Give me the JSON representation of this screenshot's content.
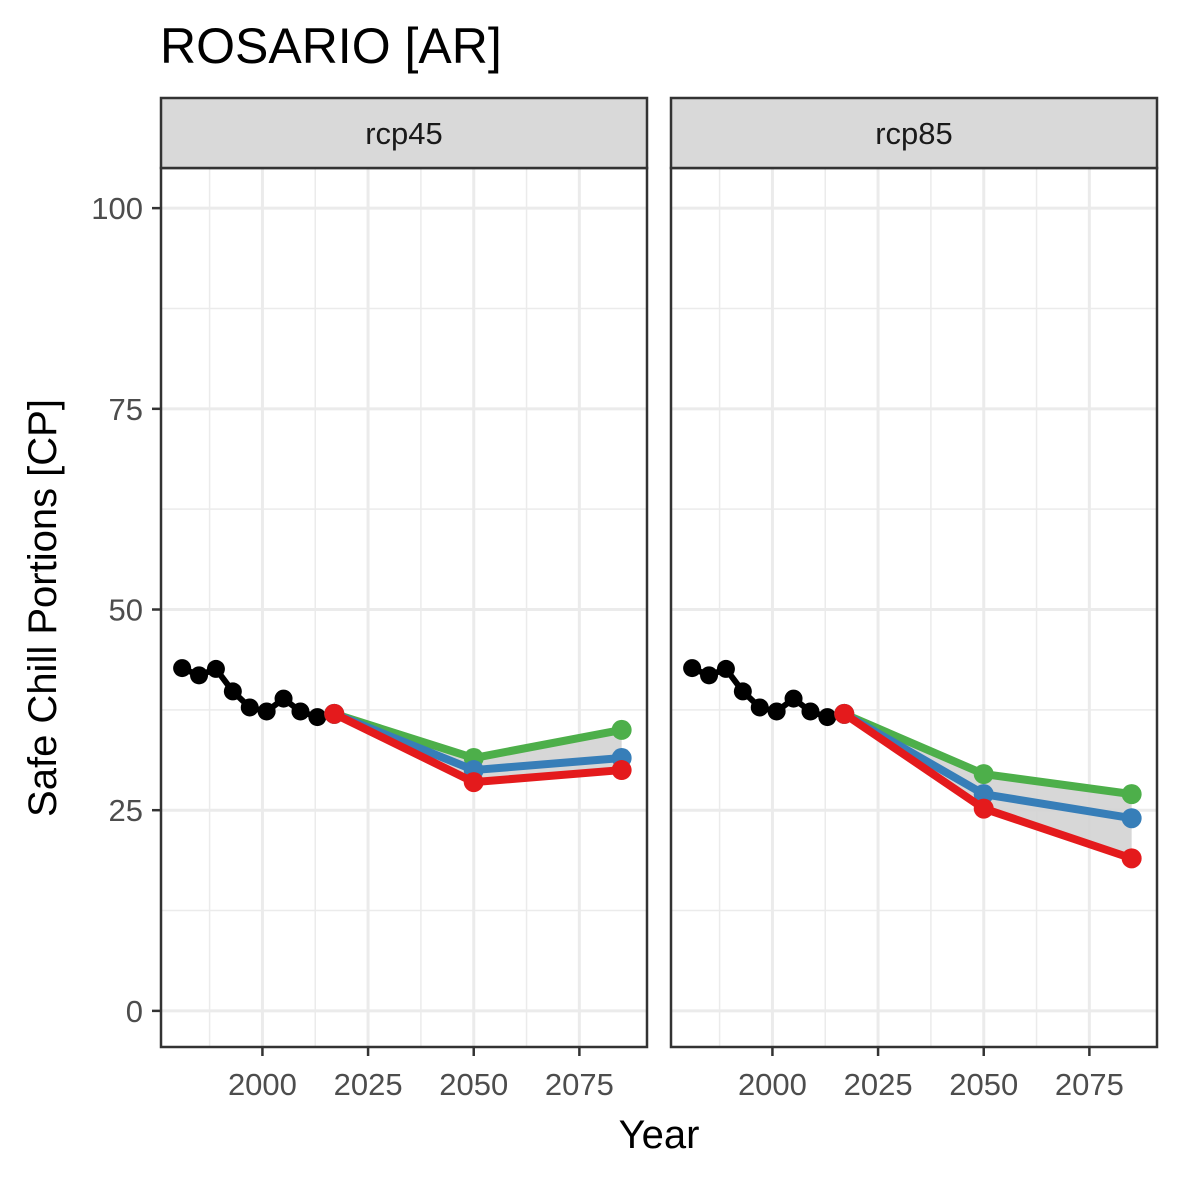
{
  "chart_data": {
    "type": "line",
    "title": "ROSARIO [AR]",
    "xlabel": "Year",
    "ylabel": "Safe Chill Portions [CP]",
    "xlim": [
      1976,
      2091
    ],
    "ylim": [
      -4.5,
      105
    ],
    "x_ticks": [
      2000,
      2025,
      2050,
      2075
    ],
    "y_ticks": [
      0,
      25,
      50,
      75,
      100
    ],
    "grid": true,
    "legend": "none",
    "colors": {
      "historic": "#000000",
      "high": "#4daf4a",
      "median": "#377eb8",
      "low": "#e41a1c",
      "ribbon": "#d3d3d3",
      "strip_fill": "#d9d9d9",
      "grid": "#ebebeb",
      "border": "#333333"
    },
    "panels": [
      {
        "name": "rcp45",
        "historic": {
          "x": [
            1981,
            1985,
            1989,
            1993,
            1997,
            2001,
            2005,
            2009,
            2013
          ],
          "y": [
            42.7,
            41.8,
            42.6,
            39.8,
            37.8,
            37.3,
            38.9,
            37.3,
            36.6
          ]
        },
        "series": [
          {
            "key": "high",
            "x": [
              2017,
              2050,
              2085
            ],
            "y": [
              37.0,
              31.5,
              35.0
            ]
          },
          {
            "key": "median",
            "x": [
              2017,
              2050,
              2085
            ],
            "y": [
              37.0,
              30.0,
              31.5
            ]
          },
          {
            "key": "low",
            "x": [
              2017,
              2050,
              2085
            ],
            "y": [
              37.0,
              28.5,
              30.0
            ]
          }
        ]
      },
      {
        "name": "rcp85",
        "historic": {
          "x": [
            1981,
            1985,
            1989,
            1993,
            1997,
            2001,
            2005,
            2009,
            2013
          ],
          "y": [
            42.7,
            41.8,
            42.6,
            39.8,
            37.8,
            37.3,
            38.9,
            37.3,
            36.6
          ]
        },
        "series": [
          {
            "key": "high",
            "x": [
              2017,
              2050,
              2085
            ],
            "y": [
              37.0,
              29.5,
              27.0
            ]
          },
          {
            "key": "median",
            "x": [
              2017,
              2050,
              2085
            ],
            "y": [
              37.0,
              27.0,
              24.0
            ]
          },
          {
            "key": "low",
            "x": [
              2017,
              2050,
              2085
            ],
            "y": [
              37.0,
              25.2,
              19.0
            ]
          }
        ]
      }
    ]
  }
}
